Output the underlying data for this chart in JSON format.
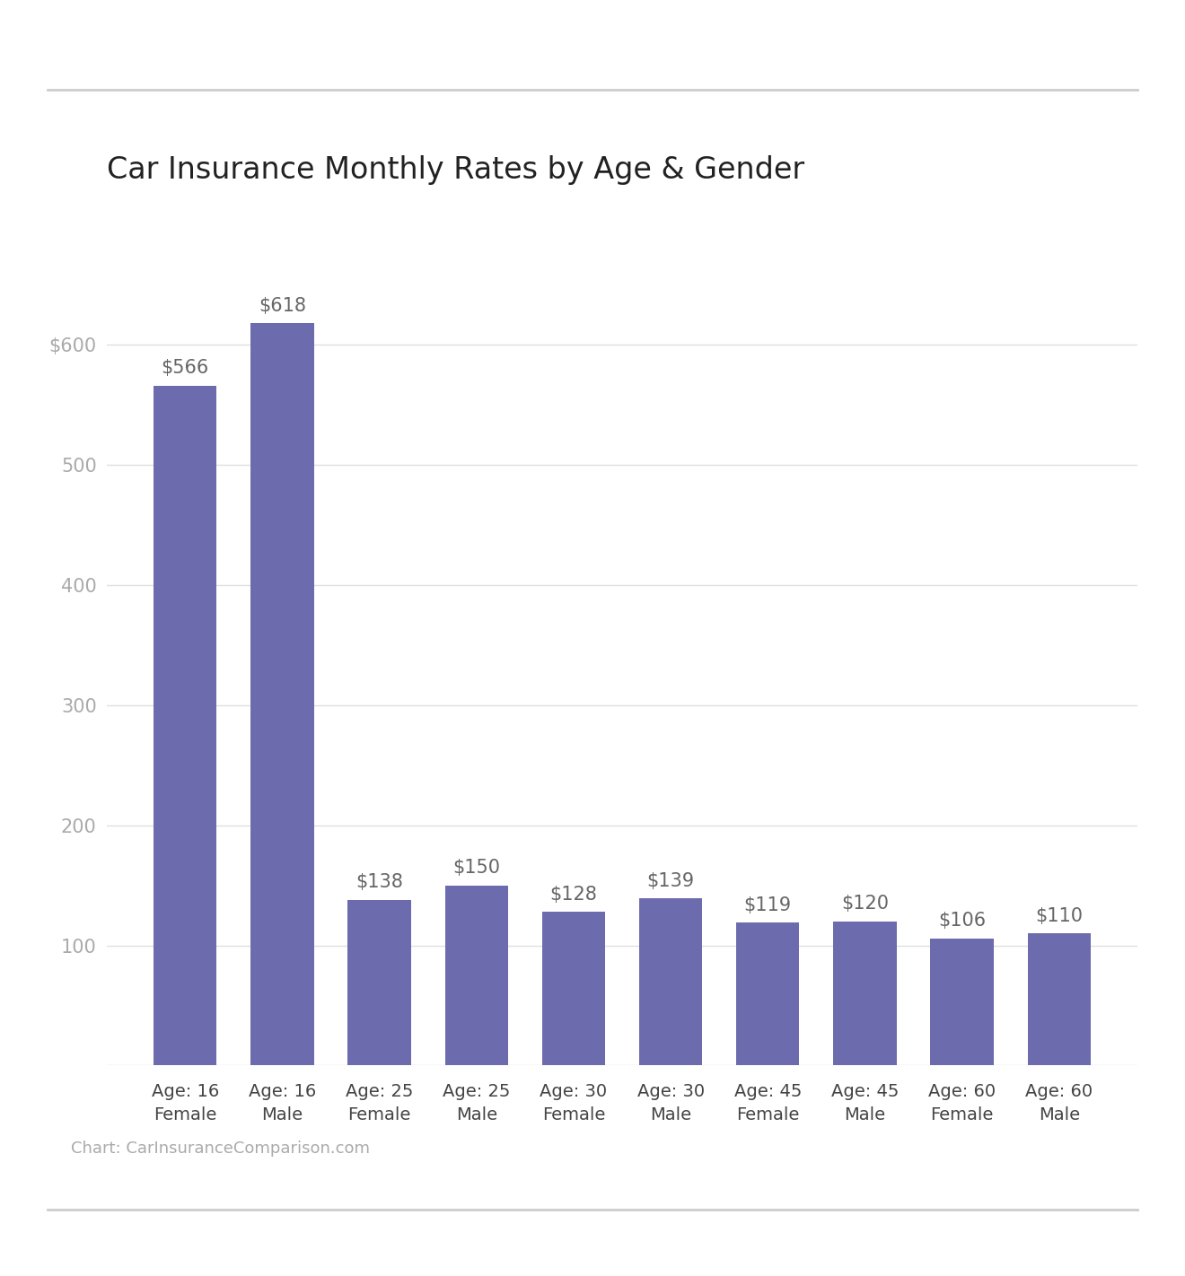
{
  "title": "Car Insurance Monthly Rates by Age & Gender",
  "categories": [
    "Age: 16\nFemale",
    "Age: 16\nMale",
    "Age: 25\nFemale",
    "Age: 25\nMale",
    "Age: 30\nFemale",
    "Age: 30\nMale",
    "Age: 45\nFemale",
    "Age: 45\nMale",
    "Age: 60\nFemale",
    "Age: 60\nMale"
  ],
  "values": [
    566,
    618,
    138,
    150,
    128,
    139,
    119,
    120,
    106,
    110
  ],
  "bar_color": "#6b6bae",
  "value_labels": [
    "$566",
    "$618",
    "$138",
    "$150",
    "$128",
    "$139",
    "$119",
    "$120",
    "$106",
    "$110"
  ],
  "ylim": [
    0,
    680
  ],
  "yticks": [
    0,
    100,
    200,
    300,
    400,
    500,
    600
  ],
  "grid_color": "#e0e0e0",
  "background_color": "#ffffff",
  "title_fontsize": 24,
  "bar_label_fontsize": 15,
  "xtick_fontsize": 14,
  "ytick_fontsize": 15,
  "source_text": "Chart: CarInsuranceComparison.com",
  "source_fontsize": 13,
  "source_color": "#aaaaaa",
  "title_color": "#222222",
  "ytick_color": "#aaaaaa",
  "xtick_color": "#444444",
  "bar_label_color": "#666666",
  "sep_line_color": "#cccccc",
  "bar_width": 0.65
}
